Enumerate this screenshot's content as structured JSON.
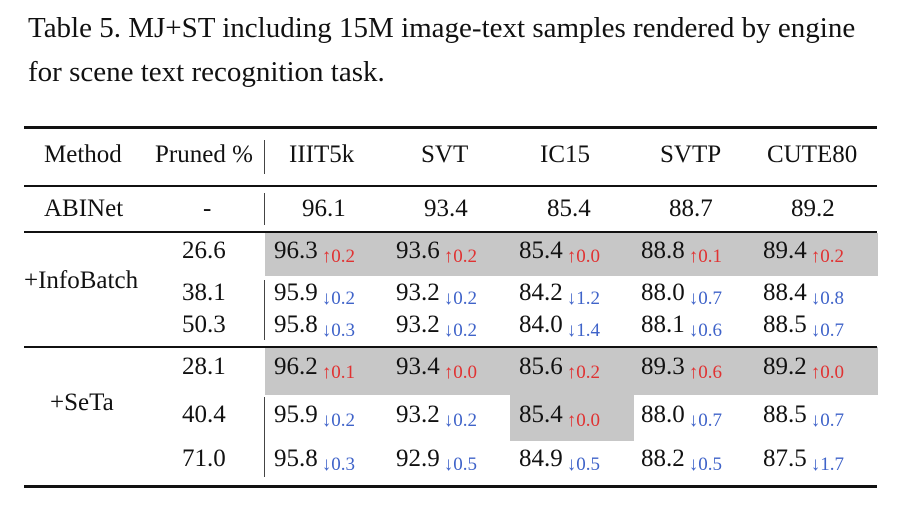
{
  "caption": "Table 5. MJ+ST including 15M image-text samples rendered by engine for scene text recognition task.",
  "colors": {
    "up": "#e03232",
    "down": "#3f63c9",
    "shade": "#c7c7c7"
  },
  "header": [
    "Method",
    "Pruned %",
    "IIIT5k",
    "SVT",
    "IC15",
    "SVTP",
    "CUTE80"
  ],
  "baseline": {
    "method": "ABINet",
    "pruned": "-",
    "values": [
      "96.1",
      "93.4",
      "85.4",
      "88.7",
      "89.2"
    ]
  },
  "groups": [
    {
      "method": "+InfoBatch",
      "rows": [
        {
          "pruned": "26.6",
          "cells": [
            {
              "v": "96.3",
              "d": "↑0.2",
              "dir": "up"
            },
            {
              "v": "93.6",
              "d": "↑0.2",
              "dir": "up"
            },
            {
              "v": "85.4",
              "d": "↑0.0",
              "dir": "up"
            },
            {
              "v": "88.8",
              "d": "↑0.1",
              "dir": "up"
            },
            {
              "v": "89.4",
              "d": "↑0.2",
              "dir": "up"
            }
          ]
        },
        {
          "pruned": "38.1",
          "cells": [
            {
              "v": "95.9",
              "d": "↓0.2",
              "dir": "down"
            },
            {
              "v": "93.2",
              "d": "↓0.2",
              "dir": "down"
            },
            {
              "v": "84.2",
              "d": "↓1.2",
              "dir": "down"
            },
            {
              "v": "88.0",
              "d": "↓0.7",
              "dir": "down"
            },
            {
              "v": "88.4",
              "d": "↓0.8",
              "dir": "down"
            }
          ]
        },
        {
          "pruned": "50.3",
          "cells": [
            {
              "v": "95.8",
              "d": "↓0.3",
              "dir": "down"
            },
            {
              "v": "93.2",
              "d": "↓0.2",
              "dir": "down"
            },
            {
              "v": "84.0",
              "d": "↓1.4",
              "dir": "down"
            },
            {
              "v": "88.1",
              "d": "↓0.6",
              "dir": "down"
            },
            {
              "v": "88.5",
              "d": "↓0.7",
              "dir": "down"
            }
          ]
        }
      ]
    },
    {
      "method": "+SeTa",
      "rows": [
        {
          "pruned": "28.1",
          "cells": [
            {
              "v": "96.2",
              "d": "↑0.1",
              "dir": "up"
            },
            {
              "v": "93.4",
              "d": "↑0.0",
              "dir": "up"
            },
            {
              "v": "85.6",
              "d": "↑0.2",
              "dir": "up"
            },
            {
              "v": "89.3",
              "d": "↑0.6",
              "dir": "up"
            },
            {
              "v": "89.2",
              "d": "↑0.0",
              "dir": "up"
            }
          ]
        },
        {
          "pruned": "40.4",
          "cells": [
            {
              "v": "95.9",
              "d": "↓0.2",
              "dir": "down"
            },
            {
              "v": "93.2",
              "d": "↓0.2",
              "dir": "down"
            },
            {
              "v": "85.4",
              "d": "↑0.0",
              "dir": "up"
            },
            {
              "v": "88.0",
              "d": "↓0.7",
              "dir": "down"
            },
            {
              "v": "88.5",
              "d": "↓0.7",
              "dir": "down"
            }
          ]
        },
        {
          "pruned": "71.0",
          "cells": [
            {
              "v": "95.8",
              "d": "↓0.3",
              "dir": "down"
            },
            {
              "v": "92.9",
              "d": "↓0.5",
              "dir": "down"
            },
            {
              "v": "84.9",
              "d": "↓0.5",
              "dir": "down"
            },
            {
              "v": "88.2",
              "d": "↓0.5",
              "dir": "down"
            },
            {
              "v": "87.5",
              "d": "↓1.7",
              "dir": "down"
            }
          ]
        }
      ]
    }
  ]
}
